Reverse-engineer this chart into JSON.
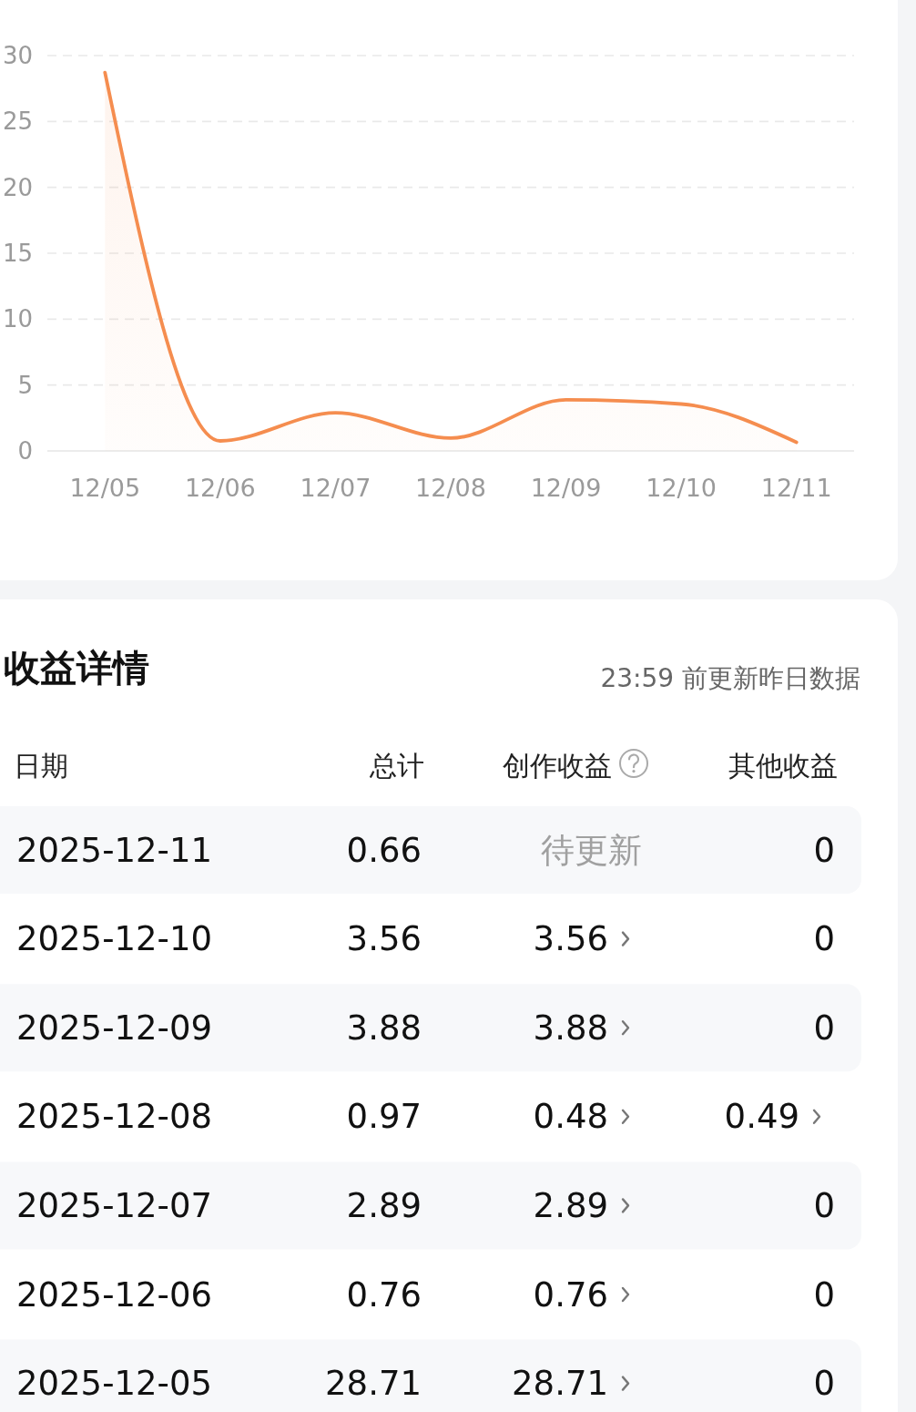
{
  "chart_data": [
    {
      "type": "area",
      "categories": [
        "12/05",
        "12/06",
        "12/07",
        "12/08",
        "12/09",
        "12/10",
        "12/11"
      ],
      "values": [
        28.71,
        0.76,
        2.89,
        0.97,
        3.88,
        3.56,
        0.66
      ],
      "color": "#f58d4f",
      "ylim": [
        0,
        30
      ],
      "yticks": [
        0,
        5,
        10,
        15,
        20,
        25,
        30
      ],
      "grid": "y"
    },
    {
      "type": "other",
      "title": "收益详情",
      "subtitle": "23:59 前更新昨日数据",
      "ylabel": "日期",
      "categories": [
        "总计",
        "创作收益",
        "其他收益"
      ],
      "y_categories": [
        "2025-12-11",
        "2025-12-10",
        "2025-12-09",
        "2025-12-08",
        "2025-12-07",
        "2025-12-06",
        "2025-12-05"
      ],
      "annotations": [
        "0.66",
        "待更新",
        "0",
        "3.56",
        "3.56",
        "0",
        "3.88",
        "3.88",
        "0",
        "0.97",
        "0.48",
        "0.49",
        "2.89",
        "2.89",
        "0",
        "0.76",
        "0.76",
        "0",
        "28.71",
        "28.71",
        "0"
      ]
    }
  ]
}
